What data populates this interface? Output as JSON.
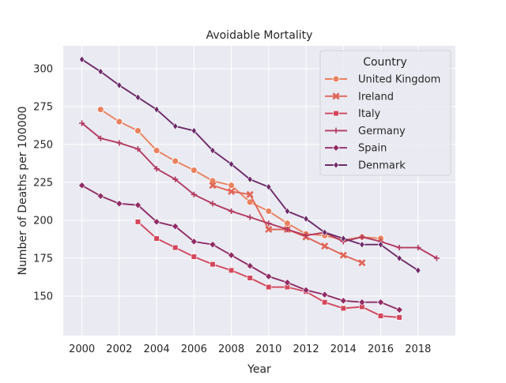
{
  "chart_data": {
    "type": "line",
    "title": "Avoidable Mortality",
    "xlabel": "Year",
    "ylabel": "Number of Deaths per 100000",
    "xlim": [
      1999,
      2020
    ],
    "ylim": [
      124,
      315
    ],
    "xticks": [
      2000,
      2002,
      2004,
      2006,
      2008,
      2010,
      2012,
      2014,
      2016,
      2018
    ],
    "yticks": [
      150,
      175,
      200,
      225,
      250,
      275,
      300
    ],
    "grid": true,
    "legend": {
      "title": "Country",
      "position": "top-right"
    },
    "series": [
      {
        "name": "United Kingdom",
        "color": "#e8825e",
        "marker": "circle",
        "x": [
          2001,
          2002,
          2003,
          2004,
          2005,
          2006,
          2007,
          2008,
          2009,
          2010,
          2011,
          2012,
          2013,
          2014,
          2015,
          2016
        ],
        "y": [
          273,
          265,
          259,
          246,
          239,
          233,
          226,
          223,
          212,
          206,
          198,
          191,
          190,
          187,
          189,
          188
        ]
      },
      {
        "name": "Ireland",
        "color": "#e06556",
        "marker": "x",
        "x": [
          2007,
          2008,
          2009,
          2010,
          2011,
          2012,
          2013,
          2014,
          2015
        ],
        "y": [
          223,
          219,
          217,
          194,
          194,
          189,
          183,
          177,
          172
        ]
      },
      {
        "name": "Italy",
        "color": "#d2475c",
        "marker": "square",
        "x": [
          2003,
          2004,
          2005,
          2006,
          2007,
          2008,
          2009,
          2010,
          2011,
          2012,
          2013,
          2014,
          2015,
          2016,
          2017
        ],
        "y": [
          199,
          188,
          182,
          176,
          171,
          167,
          162,
          156,
          156,
          153,
          146,
          142,
          143,
          137,
          136
        ]
      },
      {
        "name": "Germany",
        "color": "#b23a60",
        "marker": "plus",
        "x": [
          2000,
          2001,
          2002,
          2003,
          2004,
          2005,
          2006,
          2007,
          2008,
          2009,
          2010,
          2011,
          2012,
          2013,
          2014,
          2015,
          2016,
          2017,
          2018,
          2019
        ],
        "y": [
          264,
          254,
          251,
          247,
          234,
          227,
          217,
          211,
          206,
          202,
          198,
          194,
          190,
          192,
          186,
          189,
          186,
          182,
          182,
          175
        ]
      },
      {
        "name": "Spain",
        "color": "#8e2d66",
        "marker": "diamond",
        "x": [
          2000,
          2001,
          2002,
          2003,
          2004,
          2005,
          2006,
          2007,
          2008,
          2009,
          2010,
          2011,
          2012,
          2013,
          2014,
          2015,
          2016,
          2017
        ],
        "y": [
          223,
          216,
          211,
          210,
          199,
          196,
          186,
          184,
          177,
          170,
          163,
          159,
          154,
          151,
          147,
          146,
          146,
          141
        ]
      },
      {
        "name": "Denmark",
        "color": "#6c2a69",
        "marker": "thin-diamond",
        "x": [
          2000,
          2001,
          2002,
          2003,
          2004,
          2005,
          2006,
          2007,
          2008,
          2009,
          2010,
          2011,
          2012,
          2013,
          2014,
          2015,
          2016,
          2017,
          2018
        ],
        "y": [
          306,
          298,
          289,
          281,
          273,
          262,
          259,
          246,
          237,
          227,
          222,
          206,
          201,
          192,
          188,
          184,
          184,
          175,
          167
        ]
      }
    ],
    "colors": {
      "plot_background": "#eaeaf2",
      "grid": "#ffffff",
      "text": "#262626"
    }
  }
}
